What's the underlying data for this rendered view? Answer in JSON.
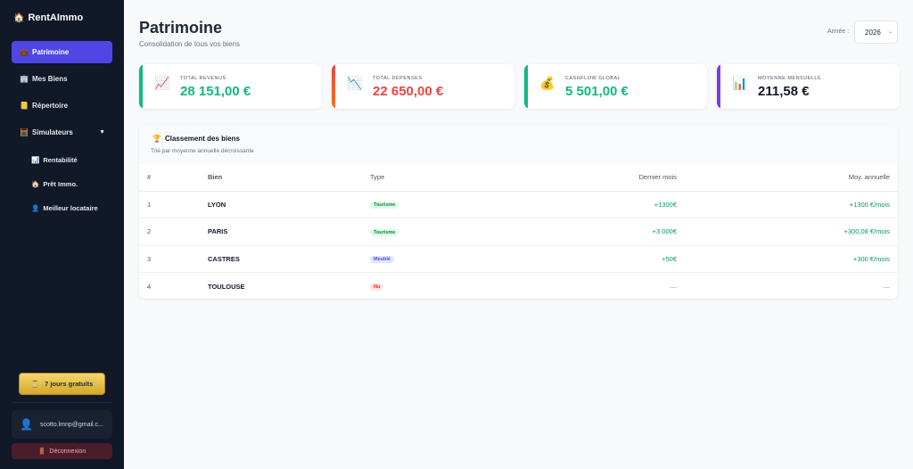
{
  "brand": {
    "icon": "🏠",
    "name": "RentAImmo"
  },
  "sidebar": {
    "items": [
      {
        "icon": "💼",
        "label": "Patrimoine",
        "active": true
      },
      {
        "icon": "🏢",
        "label": "Mes Biens"
      },
      {
        "icon": "📒",
        "label": "Répertoire"
      },
      {
        "icon": "🧮",
        "label": "Simulateurs",
        "chevron": "▼"
      }
    ],
    "subitems": [
      {
        "icon": "📊",
        "label": "Rentabilité"
      },
      {
        "icon": "🏠",
        "label": "Prêt Immo."
      },
      {
        "icon": "👤",
        "label": "Meilleur locataire"
      }
    ],
    "trial": {
      "icon": "⏳",
      "label": "7 jours gratuits"
    },
    "user": {
      "icon": "👤",
      "email": "scotto.lmnp@gmail.c..."
    },
    "logout": {
      "icon": "🚪",
      "label": "Déconnexion"
    }
  },
  "header": {
    "title": "Patrimoine",
    "subtitle": "Consolidation de tous vos biens",
    "year_label": "Année :",
    "year_value": "2026",
    "year_chevron": "⌄"
  },
  "cards": [
    {
      "icon": "📈",
      "label": "Total revenus",
      "value": "28 151,00 €",
      "color": "#10b981",
      "bar": "#10b981"
    },
    {
      "icon": "📉",
      "label": "Total dépenses",
      "value": "22 650,00 €",
      "color": "#ef4444",
      "bar": "#ef4444"
    },
    {
      "icon": "💰",
      "label": "Cashflow global",
      "value": "5 501,00 €",
      "color": "#10b981",
      "bar": "#10b981"
    },
    {
      "icon": "📊",
      "label": "Moyenne mensuelle",
      "value": "211,58 €",
      "color": "#111827",
      "bar": "#7c3aed"
    }
  ],
  "ranking": {
    "icon": "🏆",
    "title": "Classement des biens",
    "subtitle": "Trié par moyenne annuelle décroissante",
    "columns": [
      "#",
      "Bien",
      "Type",
      "Dernier mois",
      "Moy. annuelle"
    ],
    "rows": [
      {
        "rank": "1",
        "bien": "LYON",
        "type": "Tourisme",
        "type_class": "tourisme",
        "last": "+1300€",
        "avg": "+1300 €/mois"
      },
      {
        "rank": "2",
        "bien": "PARIS",
        "type": "Tourisme",
        "type_class": "tourisme",
        "last": "+3 000€",
        "avg": "+300,08 €/mois"
      },
      {
        "rank": "3",
        "bien": "CASTRES",
        "type": "Meublé",
        "type_class": "meuble",
        "last": "+50€",
        "avg": "+300 €/mois"
      },
      {
        "rank": "4",
        "bien": "TOULOUSE",
        "type": "Nu",
        "type_class": "nu",
        "last": "—",
        "avg": "—"
      }
    ]
  }
}
